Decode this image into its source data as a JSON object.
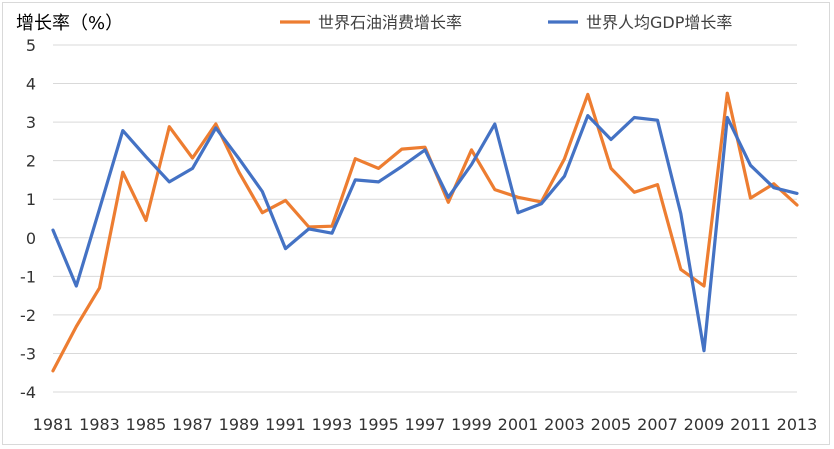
{
  "chart_data": {
    "type": "line",
    "title": "",
    "ylabel": "增长率（%）",
    "xlabel": "",
    "ylim": [
      -4,
      5
    ],
    "yticks": [
      5,
      4,
      3,
      2,
      1,
      0,
      -1,
      -2,
      -3,
      -4
    ],
    "x": [
      1981,
      1982,
      1983,
      1984,
      1985,
      1986,
      1987,
      1988,
      1989,
      1990,
      1991,
      1992,
      1993,
      1994,
      1995,
      1996,
      1997,
      1998,
      1999,
      2000,
      2001,
      2002,
      2003,
      2004,
      2005,
      2006,
      2007,
      2008,
      2009,
      2010,
      2011,
      2012,
      2013
    ],
    "xtick_labels": [
      "1981",
      "1983",
      "1985",
      "1987",
      "1989",
      "1991",
      "1993",
      "1995",
      "1997",
      "1999",
      "2001",
      "2003",
      "2005",
      "2007",
      "2009",
      "2011",
      "2013"
    ],
    "grid": true,
    "legend_position": "top",
    "series": [
      {
        "name": "世界石油消费增长率",
        "color": "#ED7D31",
        "values": [
          -3.45,
          -2.3,
          -1.3,
          1.7,
          0.45,
          2.88,
          2.07,
          2.95,
          1.7,
          0.65,
          0.97,
          0.28,
          0.3,
          2.05,
          1.8,
          2.3,
          2.35,
          0.92,
          2.28,
          1.25,
          1.05,
          0.93,
          2.05,
          3.72,
          1.8,
          1.18,
          1.38,
          -0.82,
          -1.25,
          3.75,
          1.03,
          1.4,
          0.85
        ]
      },
      {
        "name": "世界人均GDP增长率",
        "color": "#4472C4",
        "values": [
          0.2,
          -1.25,
          0.75,
          2.78,
          2.1,
          1.45,
          1.8,
          2.85,
          2.05,
          1.2,
          -0.28,
          0.23,
          0.12,
          1.5,
          1.45,
          1.85,
          2.28,
          1.05,
          1.9,
          2.95,
          0.65,
          0.88,
          1.6,
          3.17,
          2.55,
          3.12,
          3.05,
          0.63,
          -2.93,
          3.12,
          1.88,
          1.3,
          1.15
        ]
      }
    ]
  }
}
